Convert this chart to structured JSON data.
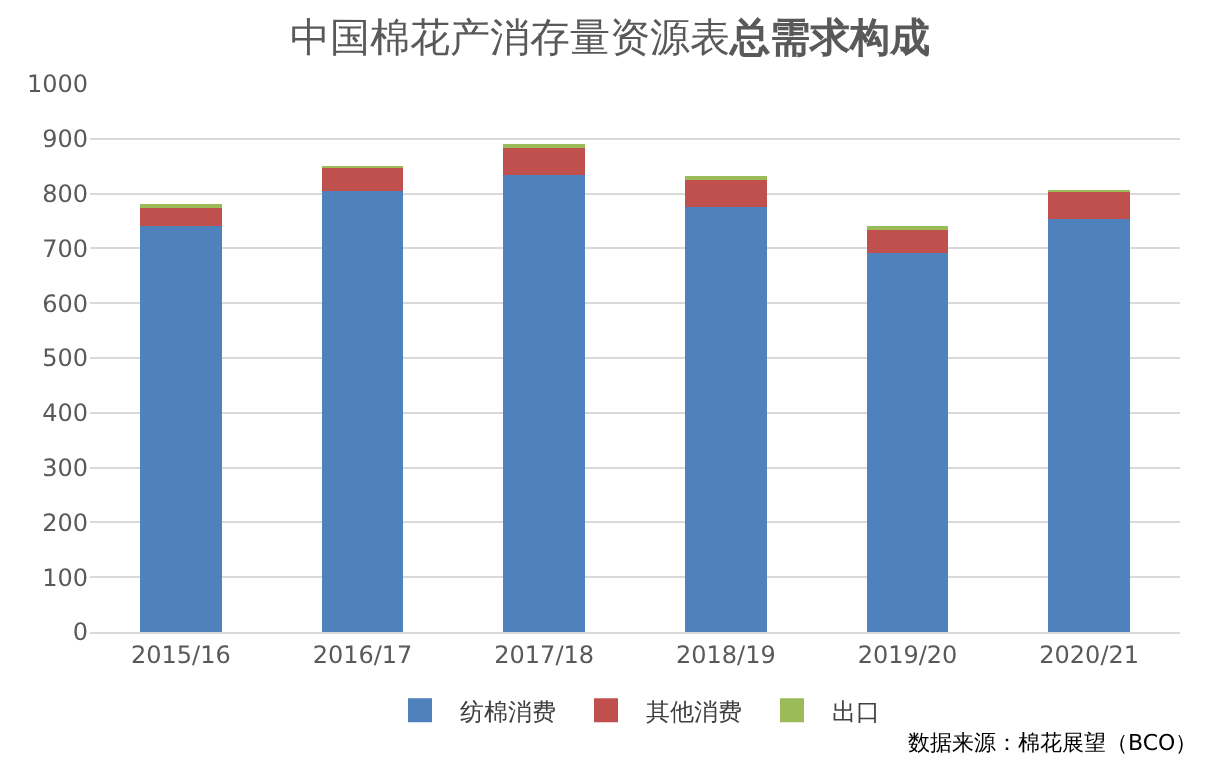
{
  "chart_data": {
    "type": "bar",
    "title": "中国棉花产消存量资源表",
    "subtitle": "总需求构成",
    "categories": [
      "2015/16",
      "2016/17",
      "2017/18",
      "2018/19",
      "2019/20",
      "2020/21"
    ],
    "series": [
      {
        "name": "纺棉消费",
        "color": "#4f81bd",
        "values": [
          740,
          804,
          834,
          776,
          691,
          753
        ]
      },
      {
        "name": "其他消费",
        "color": "#c0504d",
        "values": [
          37,
          43,
          51,
          50,
          46,
          50
        ]
      },
      {
        "name": "出口",
        "color": "#9bbb59",
        "values": [
          3,
          3,
          2,
          3,
          3,
          3
        ]
      }
    ],
    "stacked": true,
    "ylim": [
      0,
      1000
    ],
    "yticks": [
      0,
      100,
      200,
      300,
      400,
      500,
      600,
      700,
      800,
      900,
      1000
    ],
    "grid": "y",
    "legend": "bottom",
    "annotations": [
      "数据来源：棉花展望（BCO）"
    ]
  }
}
